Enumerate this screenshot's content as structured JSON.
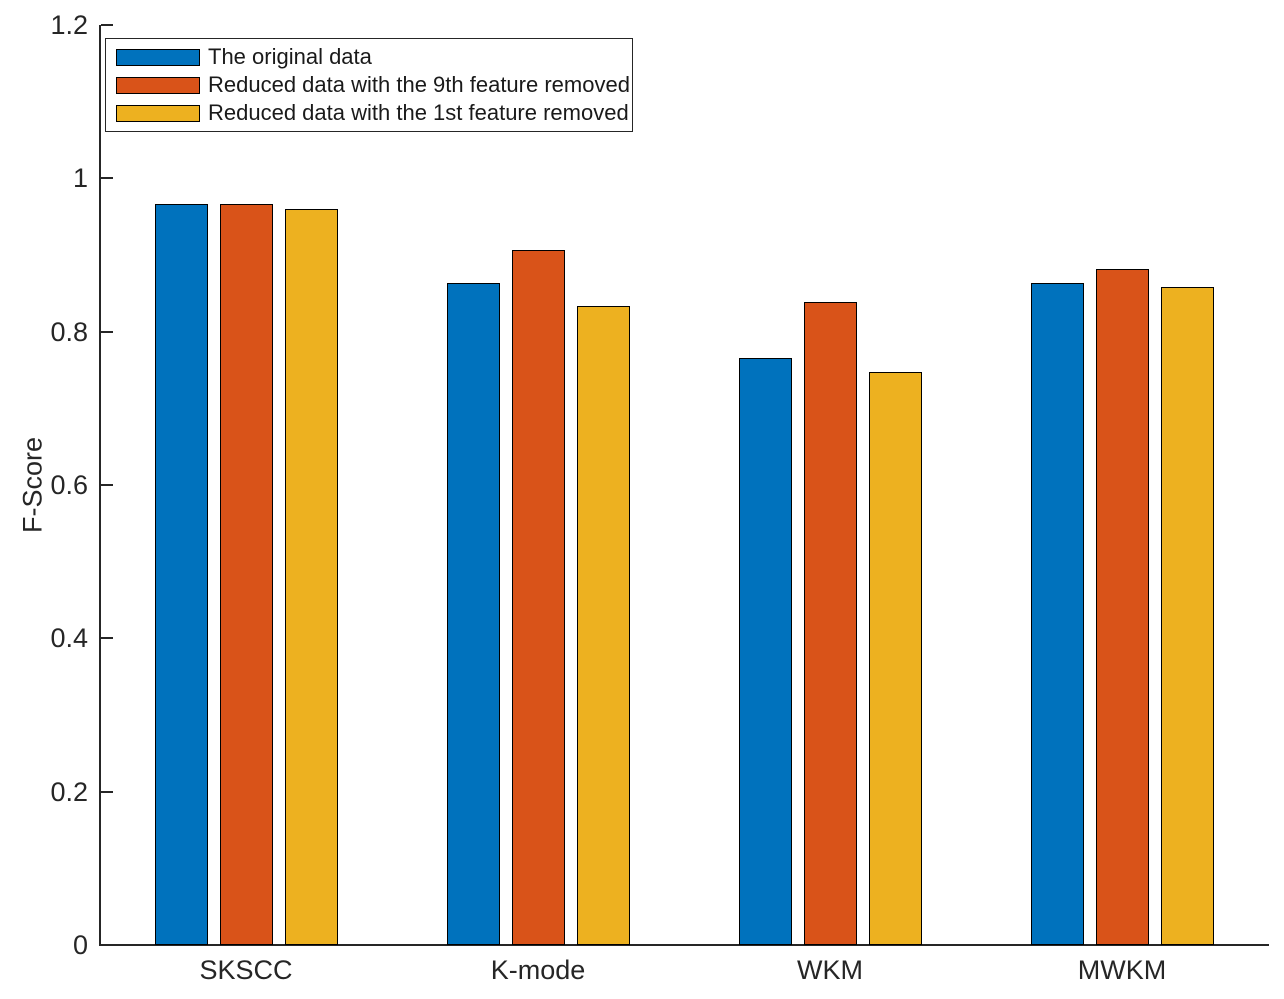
{
  "chart_data": {
    "type": "bar",
    "title": "",
    "xlabel": "",
    "ylabel": "F-Score",
    "ylim": [
      0,
      1.2
    ],
    "yticks": [
      0,
      0.2,
      0.4,
      0.6,
      0.8,
      1,
      1.2
    ],
    "ytick_labels": [
      "0",
      "0.2",
      "0.4",
      "0.6",
      "0.8",
      "1",
      "1.2"
    ],
    "categories": [
      "SKSCC",
      "K-mode",
      "WKM",
      "MWKM"
    ],
    "series": [
      {
        "name": "The original data",
        "color": "#0072BD",
        "values": [
          0.966,
          0.863,
          0.766,
          0.864
        ]
      },
      {
        "name": "Reduced data with the 9th feature removed",
        "color": "#D95319",
        "values": [
          0.967,
          0.907,
          0.839,
          0.882
        ]
      },
      {
        "name": "Reduced data with the 1st feature removed",
        "color": "#EDB120",
        "values": [
          0.96,
          0.834,
          0.748,
          0.858
        ]
      }
    ],
    "legend_position": "top-left",
    "grid": false,
    "bar_edge_color": "#000000",
    "axis_color": "#262626",
    "legend_border_color": "#262626",
    "background": "#ffffff"
  }
}
